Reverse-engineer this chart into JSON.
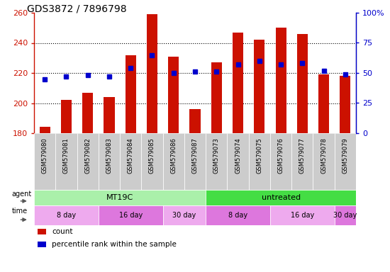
{
  "title": "GDS3872 / 7896798",
  "samples": [
    "GSM579080",
    "GSM579081",
    "GSM579082",
    "GSM579083",
    "GSM579084",
    "GSM579085",
    "GSM579086",
    "GSM579087",
    "GSM579073",
    "GSM579074",
    "GSM579075",
    "GSM579076",
    "GSM579077",
    "GSM579078",
    "GSM579079"
  ],
  "counts": [
    184,
    202,
    207,
    204,
    232,
    259,
    231,
    196,
    227,
    247,
    242,
    250,
    246,
    219,
    218
  ],
  "percentile_ranks": [
    45,
    47,
    48,
    47,
    54,
    65,
    50,
    51,
    51,
    57,
    60,
    57,
    58,
    52,
    49
  ],
  "bar_color": "#cc1100",
  "dot_color": "#0000cc",
  "ymin": 180,
  "ymax": 260,
  "yticks": [
    180,
    200,
    220,
    240,
    260
  ],
  "y2min": 0,
  "y2max": 100,
  "y2ticks": [
    0,
    25,
    50,
    75,
    100
  ],
  "y2ticklabels": [
    "0",
    "25",
    "50",
    "75",
    "100%"
  ],
  "agent_groups": [
    {
      "label": "MT19C",
      "start": 0,
      "end": 8,
      "color": "#aaf0aa"
    },
    {
      "label": "untreated",
      "start": 8,
      "end": 15,
      "color": "#44dd44"
    }
  ],
  "time_groups": [
    {
      "label": "8 day",
      "start": 0,
      "end": 3,
      "color": "#eeaaee"
    },
    {
      "label": "16 day",
      "start": 3,
      "end": 6,
      "color": "#dd77dd"
    },
    {
      "label": "30 day",
      "start": 6,
      "end": 8,
      "color": "#eeaaee"
    },
    {
      "label": "8 day",
      "start": 8,
      "end": 11,
      "color": "#eeaaee"
    },
    {
      "label": "16 day",
      "start": 11,
      "end": 14,
      "color": "#dd77dd"
    },
    {
      "label": "30 day",
      "start": 14,
      "end": 15,
      "color": "#eeaaee"
    }
  ],
  "bg_color": "#ffffff",
  "title_fontsize": 10,
  "axis_label_color_left": "#cc1100",
  "axis_label_color_right": "#0000cc",
  "sample_bg": "#cccccc"
}
